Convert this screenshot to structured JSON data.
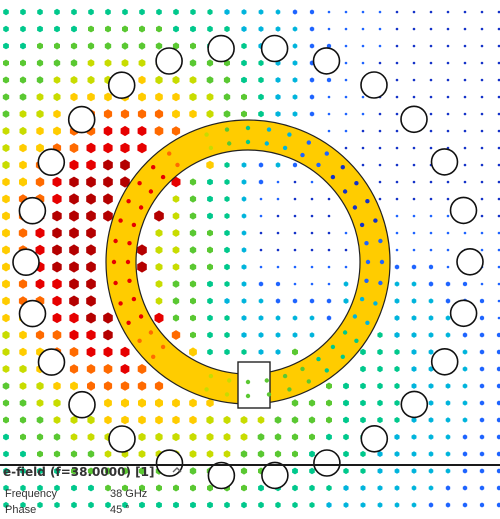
{
  "info_panel": {
    "title": "e-field (f=38.0000) [1]",
    "frequency_label": "Frequency",
    "frequency_value": "38 GHz",
    "phase_label": "Phase",
    "phase_value": "45 °"
  },
  "colors": {
    "ring_fill": "#ffcc00",
    "ring_outline": "#222222",
    "via_outline": "#111111",
    "field_colormap": [
      "#b40000",
      "#e60000",
      "#ff6a00",
      "#ffcc00",
      "#c8dc00",
      "#5ac832",
      "#00c88c",
      "#00b4dc",
      "#1e64ff",
      "#1432c8"
    ]
  },
  "icons": {
    "collapse": "chevron-up-icon"
  }
}
